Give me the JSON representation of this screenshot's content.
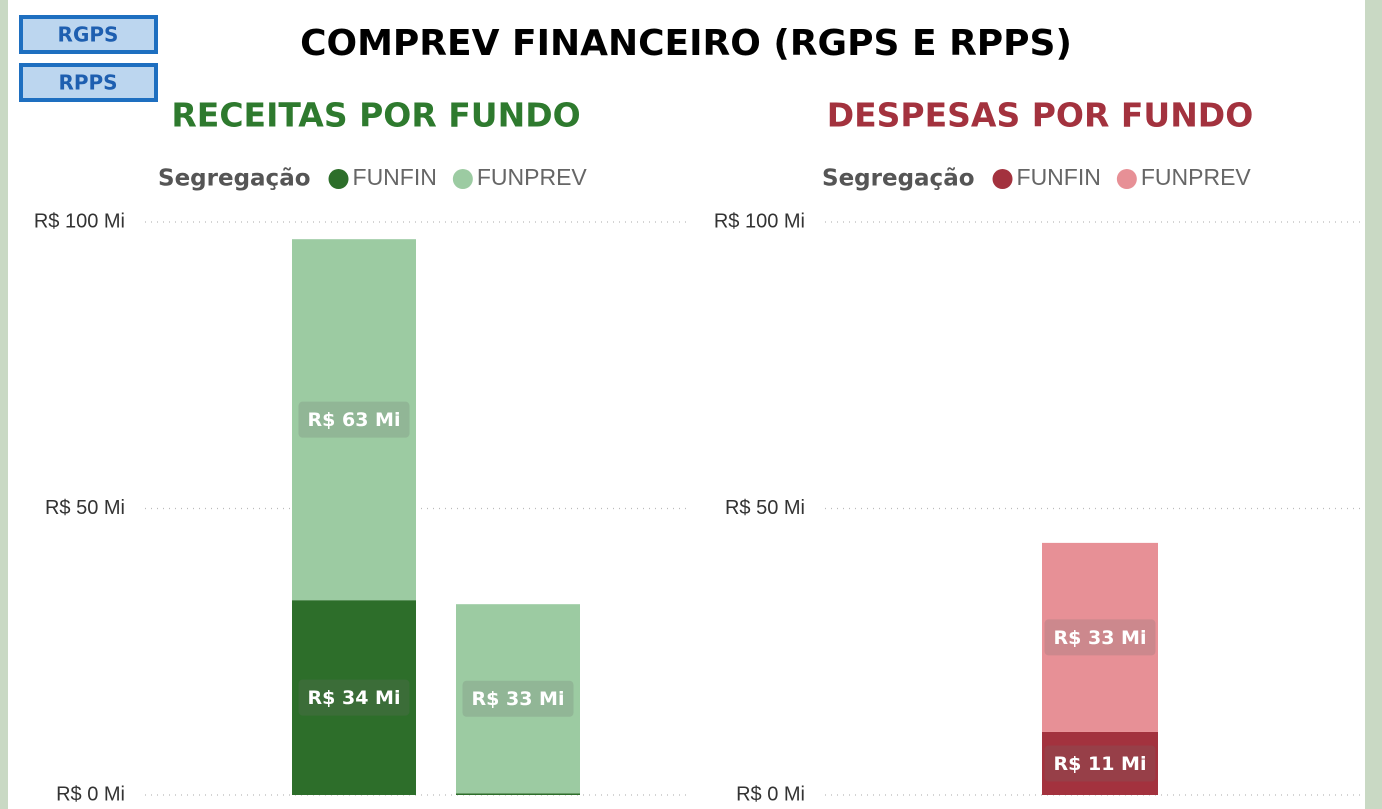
{
  "buttons": [
    "RGPS",
    "RPPS"
  ],
  "title": "COMPREV FINANCEIRO (RGPS E RPPS)",
  "chart_data": [
    {
      "type": "stacked_bar",
      "title": "RECEITAS POR FUNDO",
      "legend_title": "Segregação",
      "categories": [
        null,
        null
      ],
      "series": [
        {
          "name": "FUNFIN",
          "color": "#2d6e2a",
          "values": [
            34,
            0.3
          ],
          "value_labels": [
            "R$ 34 Mi",
            null
          ]
        },
        {
          "name": "FUNPREV",
          "color": "#9ccba2",
          "values": [
            63,
            33
          ],
          "value_labels": [
            "R$ 63 Mi",
            "R$ 33 Mi"
          ]
        }
      ],
      "ylim": [
        0,
        100
      ],
      "yticks": [
        {
          "value": 0,
          "label": "R$ 0 Mi"
        },
        {
          "value": 50,
          "label": "R$ 50 Mi"
        },
        {
          "value": 100,
          "label": "R$ 100 Mi"
        }
      ],
      "grid": true,
      "legend": "top"
    },
    {
      "type": "stacked_bar",
      "title": "DESPESAS POR FUNDO",
      "legend_title": "Segregação",
      "categories": [
        null
      ],
      "series": [
        {
          "name": "FUNFIN",
          "color": "#a3323e",
          "values": [
            11
          ],
          "value_labels": [
            "R$ 11 Mi"
          ]
        },
        {
          "name": "FUNPREV",
          "color": "#e79096",
          "values": [
            33
          ],
          "value_labels": [
            "R$ 33 Mi"
          ]
        }
      ],
      "ylim": [
        0,
        100
      ],
      "yticks": [
        {
          "value": 0,
          "label": "R$ 0 Mi"
        },
        {
          "value": 50,
          "label": "R$ 50 Mi"
        },
        {
          "value": 100,
          "label": "R$ 100 Mi"
        }
      ],
      "grid": true,
      "legend": "top"
    }
  ]
}
